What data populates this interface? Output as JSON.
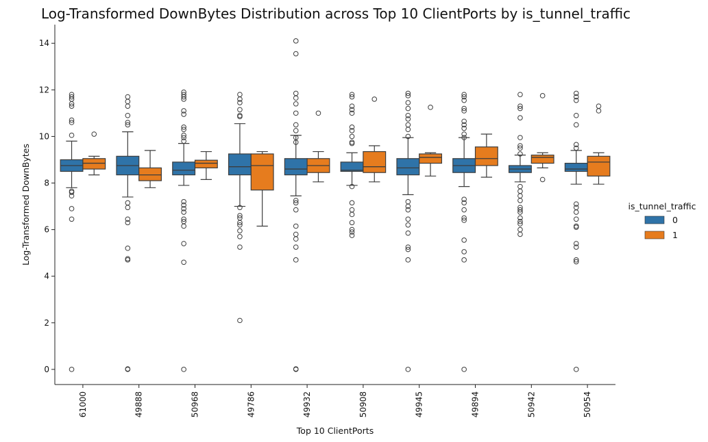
{
  "chart_data": {
    "type": "box",
    "title": "Log-Transformed DownBytes Distribution across Top 10 ClientPorts by is_tunnel_traffic",
    "xlabel": "Top 10 ClientPorts",
    "ylabel": "Log-Transformed DownBytes",
    "ylim": [
      -0.65,
      14.8
    ],
    "yticks": [
      0,
      2,
      4,
      6,
      8,
      10,
      12,
      14
    ],
    "categories": [
      "61000",
      "49888",
      "50968",
      "49786",
      "49932",
      "50908",
      "49945",
      "49894",
      "50942",
      "50954"
    ],
    "legend": {
      "title": "is_tunnel_traffic",
      "placement": "center-right, outside plot",
      "entries": [
        "0",
        "1"
      ]
    },
    "colors": {
      "0": "#2f73a8",
      "1": "#e67c1e"
    },
    "grid": false,
    "series": [
      {
        "name": "0",
        "boxes": [
          {
            "whislo": 7.8,
            "q1": 8.5,
            "med": 8.75,
            "q3": 9.0,
            "whishi": 9.8,
            "fliers": [
              11.8,
              11.7,
              11.6,
              11.4,
              11.3,
              10.7,
              10.6,
              10.05,
              7.65,
              7.6,
              7.45,
              6.9,
              6.45,
              0.0
            ]
          },
          {
            "whislo": 7.4,
            "q1": 8.35,
            "med": 8.75,
            "q3": 9.15,
            "whishi": 10.2,
            "fliers": [
              11.7,
              11.5,
              11.3,
              10.9,
              10.6,
              10.5,
              7.15,
              6.95,
              6.45,
              6.3,
              5.2,
              4.75,
              4.7,
              0.02,
              0.0
            ]
          },
          {
            "whislo": 7.9,
            "q1": 8.35,
            "med": 8.55,
            "q3": 8.9,
            "whishi": 9.7,
            "fliers": [
              11.9,
              11.8,
              11.7,
              11.6,
              11.1,
              10.95,
              10.4,
              10.3,
              10.05,
              9.95,
              9.8,
              7.2,
              7.05,
              6.9,
              6.75,
              6.45,
              6.35,
              6.15,
              5.4,
              4.6,
              0.0
            ]
          },
          {
            "whislo": 7.0,
            "q1": 8.35,
            "med": 8.7,
            "q3": 9.25,
            "whishi": 10.55,
            "fliers": [
              11.8,
              11.6,
              11.45,
              11.15,
              10.9,
              10.85,
              6.95,
              6.6,
              6.5,
              6.3,
              6.2,
              5.95,
              5.7,
              5.25,
              2.1
            ]
          },
          {
            "whislo": 7.45,
            "q1": 8.35,
            "med": 8.6,
            "q3": 9.05,
            "whishi": 10.05,
            "fliers": [
              14.1,
              13.55,
              11.85,
              11.65,
              11.4,
              11.0,
              10.5,
              10.25,
              9.95,
              9.75,
              7.25,
              7.15,
              6.85,
              6.15,
              5.8,
              5.6,
              5.25,
              4.7,
              0.02,
              0.0
            ]
          },
          {
            "whislo": 7.9,
            "q1": 8.5,
            "med": 8.55,
            "q3": 8.9,
            "whishi": 9.3,
            "fliers": [
              11.8,
              11.7,
              11.3,
              11.15,
              11.0,
              10.4,
              10.25,
              10.0,
              9.75,
              9.7,
              7.85,
              7.15,
              6.85,
              6.65,
              6.3,
              6.0,
              5.9,
              5.75
            ]
          },
          {
            "whislo": 7.5,
            "q1": 8.35,
            "med": 8.65,
            "q3": 9.05,
            "whishi": 9.95,
            "fliers": [
              11.85,
              11.75,
              11.45,
              11.2,
              10.9,
              10.75,
              10.5,
              10.3,
              10.0,
              7.2,
              7.0,
              6.85,
              6.45,
              6.2,
              5.85,
              5.25,
              5.15,
              4.7,
              0.0
            ]
          },
          {
            "whislo": 7.85,
            "q1": 8.45,
            "med": 8.75,
            "q3": 9.05,
            "whishi": 9.95,
            "fliers": [
              11.8,
              11.7,
              11.55,
              11.2,
              11.1,
              10.65,
              10.5,
              10.35,
              10.1,
              9.95,
              7.3,
              7.15,
              6.85,
              6.5,
              6.4,
              5.55,
              5.05,
              4.7,
              0.0
            ]
          },
          {
            "whislo": 8.05,
            "q1": 8.45,
            "med": 8.6,
            "q3": 8.75,
            "whishi": 9.2,
            "fliers": [
              11.8,
              11.3,
              11.2,
              10.8,
              9.95,
              9.6,
              9.5,
              9.25,
              7.85,
              7.65,
              7.45,
              7.25,
              6.95,
              6.85,
              6.75,
              6.5,
              6.35,
              6.25,
              6.0,
              5.8
            ]
          },
          {
            "whislo": 7.95,
            "q1": 8.5,
            "med": 8.6,
            "q3": 8.85,
            "whishi": 9.4,
            "fliers": [
              11.85,
              11.7,
              11.55,
              10.9,
              10.5,
              9.65,
              9.5,
              7.1,
              6.95,
              6.75,
              6.45,
              6.15,
              6.1,
              5.4,
              5.25,
              4.7,
              4.62,
              0.0
            ]
          }
        ]
      },
      {
        "name": "1",
        "boxes": [
          {
            "whislo": 8.35,
            "q1": 8.6,
            "med": 8.85,
            "q3": 9.05,
            "whishi": 9.15,
            "fliers": [
              10.1
            ]
          },
          {
            "whislo": 7.8,
            "q1": 8.1,
            "med": 8.35,
            "q3": 8.65,
            "whishi": 9.4,
            "fliers": []
          },
          {
            "whislo": 8.15,
            "q1": 8.65,
            "med": 8.85,
            "q3": 8.98,
            "whishi": 9.35,
            "fliers": []
          },
          {
            "whislo": 6.15,
            "q1": 7.7,
            "med": 8.75,
            "q3": 9.25,
            "whishi": 9.35,
            "fliers": []
          },
          {
            "whislo": 8.05,
            "q1": 8.45,
            "med": 8.75,
            "q3": 9.05,
            "whishi": 9.35,
            "fliers": [
              11.0
            ]
          },
          {
            "whislo": 8.05,
            "q1": 8.45,
            "med": 8.7,
            "q3": 9.35,
            "whishi": 9.6,
            "fliers": [
              11.6
            ]
          },
          {
            "whislo": 8.3,
            "q1": 8.85,
            "med": 9.1,
            "q3": 9.25,
            "whishi": 9.3,
            "fliers": [
              11.25
            ]
          },
          {
            "whislo": 8.25,
            "q1": 8.75,
            "med": 9.05,
            "q3": 9.55,
            "whishi": 10.1,
            "fliers": []
          },
          {
            "whislo": 8.65,
            "q1": 8.85,
            "med": 9.1,
            "q3": 9.2,
            "whishi": 9.3,
            "fliers": [
              11.75,
              8.15
            ]
          },
          {
            "whislo": 7.95,
            "q1": 8.3,
            "med": 8.9,
            "q3": 9.15,
            "whishi": 9.3,
            "fliers": [
              11.3,
              11.1
            ]
          }
        ]
      }
    ]
  }
}
